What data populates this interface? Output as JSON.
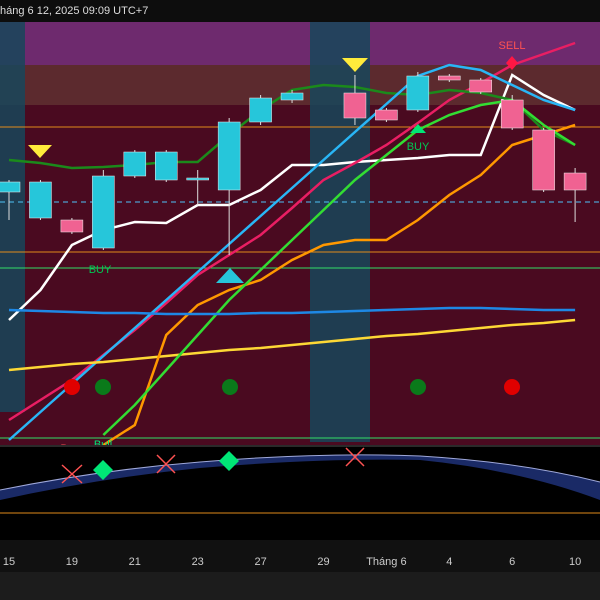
{
  "header": {
    "timestamp": "háng 6 12, 2025 09:09 UTC+7"
  },
  "chart_data": {
    "type": "candlestick",
    "categories": [
      "15",
      null,
      "19",
      null,
      "21",
      null,
      "23",
      null,
      "27",
      null,
      "29",
      null,
      "Tháng 6",
      null,
      "4",
      null,
      "6",
      null,
      "10"
    ],
    "open": [
      253,
      227,
      225,
      197,
      269,
      265,
      265,
      255,
      323,
      345,
      null,
      352,
      335,
      335,
      369,
      365,
      345,
      315,
      272
    ],
    "high": [
      265,
      265,
      227,
      275,
      295,
      295,
      275,
      327,
      350,
      355,
      null,
      370,
      337,
      373,
      371,
      367,
      350,
      317,
      277
    ],
    "low": [
      225,
      225,
      211,
      195,
      267,
      263,
      240,
      190,
      320,
      342,
      null,
      320,
      323,
      333,
      363,
      351,
      315,
      253,
      223
    ],
    "close": [
      263,
      263,
      213,
      269,
      293,
      293,
      267,
      323,
      347,
      352,
      null,
      327,
      325,
      369,
      365,
      353,
      317,
      255,
      255
    ],
    "up_color": "#26c6da",
    "down_color": "#f06292",
    "ylim": [
      0,
      423
    ],
    "series": [
      {
        "color": "#ffffff",
        "values": [
          125,
          155,
          200,
          215,
          223,
          222,
          240,
          240,
          255,
          280,
          280,
          283,
          285,
          287,
          290,
          290,
          370,
          350,
          335
        ]
      },
      {
        "color": "#e91e63",
        "values": [
          25,
          45,
          65,
          90,
          115,
          142,
          170,
          190,
          210,
          237,
          265,
          282,
          300,
          322,
          345,
          362,
          380,
          391,
          402
        ]
      },
      {
        "color": "#1b8a1b",
        "values": [
          285,
          282,
          277,
          278,
          280,
          283,
          283,
          310,
          335,
          355,
          360,
          358,
          352,
          350,
          355,
          352,
          345,
          315,
          300
        ]
      },
      {
        "color": "#29b6f6",
        "values": [
          5,
          33,
          61,
          89,
          117,
          145,
          173,
          201,
          229,
          257,
          285,
          313,
          341,
          369,
          380,
          375,
          360,
          345,
          335
        ]
      },
      {
        "color": "#fdd835",
        "values": [
          75,
          78,
          81,
          83,
          86,
          89,
          92,
          95,
          97,
          100,
          103,
          106,
          109,
          111,
          114,
          117,
          120,
          122,
          125
        ]
      },
      {
        "color": "#ff9800",
        "values": [
          null,
          null,
          null,
          0,
          20,
          110,
          140,
          155,
          165,
          185,
          200,
          205,
          205,
          225,
          250,
          270,
          300,
          310,
          320
        ]
      },
      {
        "color": "#33dd33",
        "values": [
          null,
          null,
          null,
          10,
          40,
          75,
          110,
          145,
          175,
          205,
          235,
          265,
          290,
          315,
          330,
          340,
          345,
          320,
          300
        ]
      },
      {
        "color": "#1e88e5",
        "values": [
          135,
          134,
          133,
          132,
          132,
          131,
          131,
          131,
          132,
          132,
          133,
          134,
          135,
          136,
          137,
          137,
          136,
          135,
          135
        ]
      }
    ],
    "annotations": {
      "sell": "SELL",
      "buy": "BUY",
      "buy_small": "BUY",
      "bear": "Bear",
      "bull": "Bull"
    }
  }
}
